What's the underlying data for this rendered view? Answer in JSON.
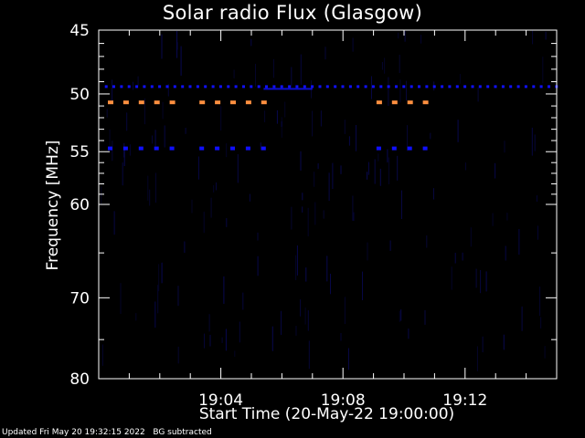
{
  "chart_data": {
    "type": "heatmap",
    "title": "Solar radio Flux (Glasgow)",
    "xlabel": "Start Time (20-May-22 19:00:00)",
    "ylabel": "Frequency [MHz]",
    "x_ticks": [
      "19:04",
      "19:08",
      "19:12"
    ],
    "x_tick_values_min": [
      4,
      8,
      12
    ],
    "xlim_min": [
      0,
      15
    ],
    "y_ticks": [
      45,
      50,
      55,
      60,
      70,
      80
    ],
    "ylim": [
      45,
      80
    ],
    "y_scale": "log",
    "colors": {
      "background": "#000000",
      "low": "#0a0a60",
      "mid": "#1010ff",
      "high": "#ff9040"
    },
    "features": [
      {
        "name": "continuous-band",
        "freq_mhz": 49.4,
        "start_min": 0.2,
        "end_min": 15,
        "intensity": "mid"
      },
      {
        "name": "pulsed-high-band",
        "freq_mhz": 50.7,
        "start_min": 0.3,
        "end_min": 2.4,
        "intensity": "high"
      },
      {
        "name": "pulsed-high-band",
        "freq_mhz": 50.7,
        "start_min": 3.3,
        "end_min": 5.4,
        "intensity": "high"
      },
      {
        "name": "pulsed-high-band",
        "freq_mhz": 50.7,
        "start_min": 9.1,
        "end_min": 11.0,
        "intensity": "high"
      },
      {
        "name": "pulsed-low-band",
        "freq_mhz": 54.7,
        "start_min": 0.3,
        "end_min": 2.4,
        "intensity": "mid"
      },
      {
        "name": "pulsed-low-band",
        "freq_mhz": 54.7,
        "start_min": 3.3,
        "end_min": 5.4,
        "intensity": "mid"
      },
      {
        "name": "pulsed-low-band",
        "freq_mhz": 54.7,
        "start_min": 9.1,
        "end_min": 11.0,
        "intensity": "mid"
      }
    ]
  },
  "footer": {
    "updated": "Updated Fri May 20 19:32:15 2022",
    "note": "BG subtracted"
  }
}
